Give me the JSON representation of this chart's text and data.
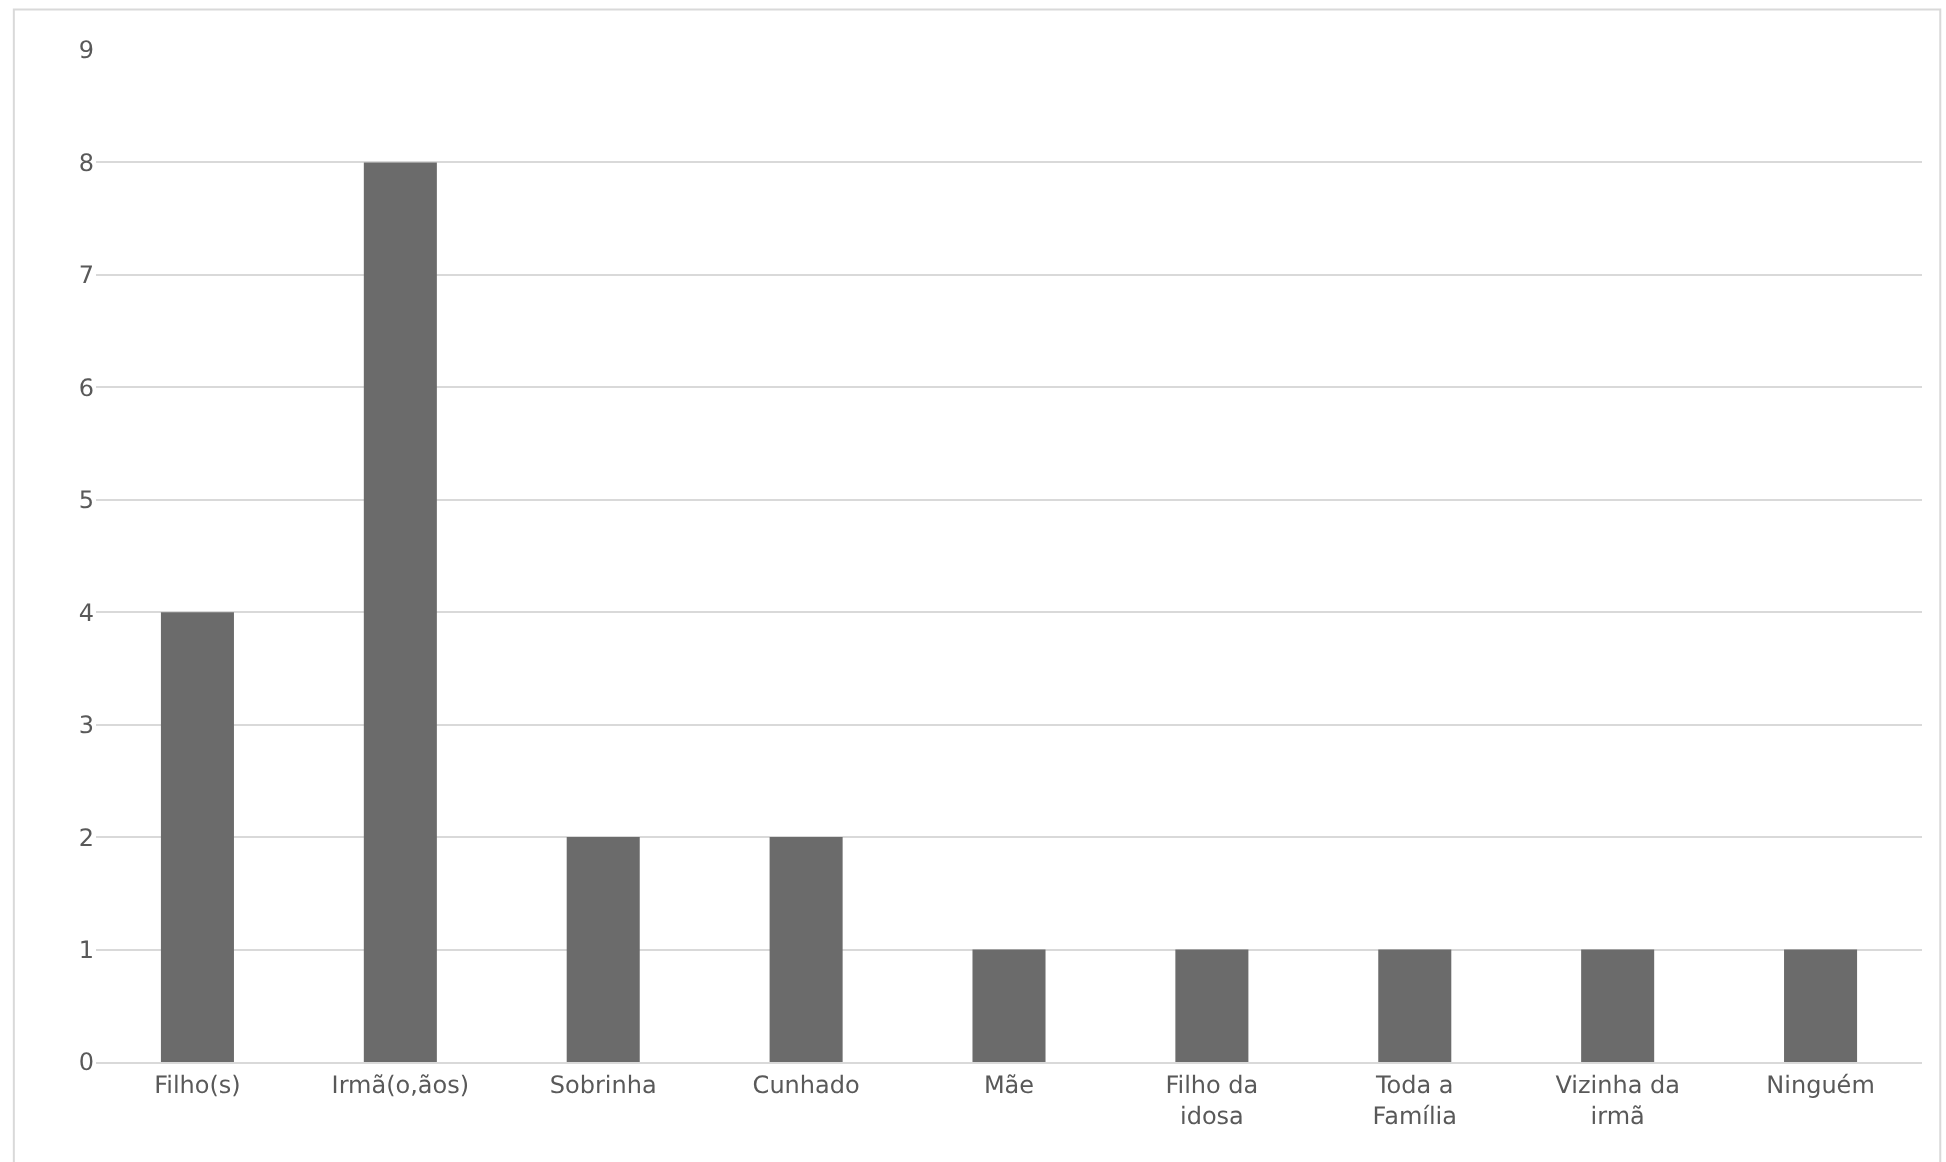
{
  "chart_data": {
    "type": "bar",
    "categories": [
      "Filho(s)",
      "Irmã(o,ãos)",
      "Sobrinha",
      "Cunhado",
      "Mãe",
      "Filho da idosa",
      "Toda a Família",
      "Vizinha da irmã",
      "Ninguém"
    ],
    "values": [
      4,
      8,
      2,
      2,
      1,
      1,
      1,
      1,
      1
    ],
    "color": "#6b6b6b",
    "ylim": [
      0,
      9
    ],
    "yticks": [
      0,
      1,
      2,
      3,
      4,
      5,
      6,
      7,
      8,
      9
    ],
    "grid": "y"
  }
}
